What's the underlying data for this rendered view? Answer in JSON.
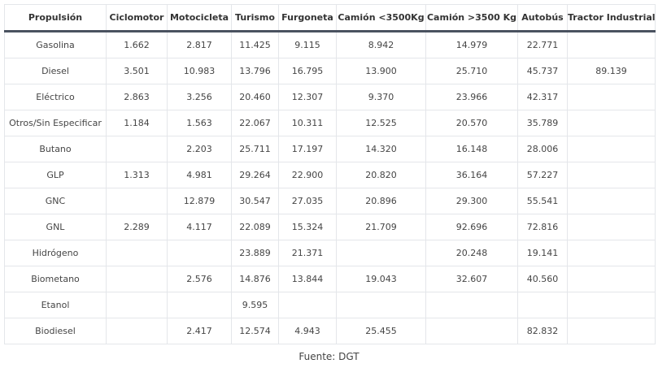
{
  "table": {
    "headers": [
      "Propulsión",
      "Ciclomotor",
      "Motocicleta",
      "Turismo",
      "Furgoneta",
      "Camión <3500Kg",
      "Camión >3500 Kg",
      "Autobús",
      "Tractor Industrial"
    ],
    "rows": [
      [
        "Gasolina",
        "1.662",
        "2.817",
        "11.425",
        "9.115",
        "8.942",
        "14.979",
        "22.771",
        ""
      ],
      [
        "Diesel",
        "3.501",
        "10.983",
        "13.796",
        "16.795",
        "13.900",
        "25.710",
        "45.737",
        "89.139"
      ],
      [
        "Eléctrico",
        "2.863",
        "3.256",
        "20.460",
        "12.307",
        "9.370",
        "23.966",
        "42.317",
        ""
      ],
      [
        "Otros/Sin Especificar",
        "1.184",
        "1.563",
        "22.067",
        "10.311",
        "12.525",
        "20.570",
        "35.789",
        ""
      ],
      [
        "Butano",
        "",
        "2.203",
        "25.711",
        "17.197",
        "14.320",
        "16.148",
        "28.006",
        ""
      ],
      [
        "GLP",
        "1.313",
        "4.981",
        "29.264",
        "22.900",
        "20.820",
        "36.164",
        "57.227",
        ""
      ],
      [
        "GNC",
        "",
        "12.879",
        "30.547",
        "27.035",
        "20.896",
        "29.300",
        "55.541",
        ""
      ],
      [
        "GNL",
        "2.289",
        "4.117",
        "22.089",
        "15.324",
        "21.709",
        "92.696",
        "72.816",
        ""
      ],
      [
        "Hidrógeno",
        "",
        "",
        "23.889",
        "21.371",
        "",
        "20.248",
        "19.141",
        ""
      ],
      [
        "Biometano",
        "",
        "2.576",
        "14.876",
        "13.844",
        "19.043",
        "32.607",
        "40.560",
        ""
      ],
      [
        "Etanol",
        "",
        "",
        "9.595",
        "",
        "",
        "",
        "",
        ""
      ],
      [
        "Biodiesel",
        "",
        "2.417",
        "12.574",
        "4.943",
        "25.455",
        "",
        "82.832",
        ""
      ]
    ]
  },
  "caption": "Fuente: DGT"
}
